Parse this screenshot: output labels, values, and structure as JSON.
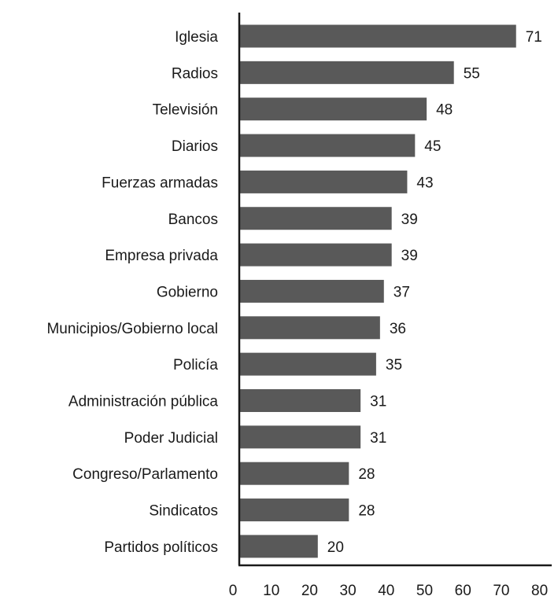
{
  "chart_data": {
    "type": "bar",
    "orientation": "horizontal",
    "categories": [
      "Iglesia",
      "Radios",
      "Televisión",
      "Diarios",
      "Fuerzas armadas",
      "Bancos",
      "Empresa privada",
      "Gobierno",
      "Municipios/Gobierno local",
      "Policía",
      "Administración pública",
      "Poder Judicial",
      "Congreso/Parlamento",
      "Sindicatos",
      "Partidos políticos"
    ],
    "values": [
      71,
      55,
      48,
      45,
      43,
      39,
      39,
      37,
      36,
      35,
      31,
      31,
      28,
      28,
      20
    ],
    "value_labels": [
      "71",
      "55",
      "48",
      "45",
      "43",
      "39",
      "39",
      "37",
      "36",
      "35",
      "31",
      "31",
      "28",
      "28",
      "20"
    ],
    "title": "",
    "xlabel": "",
    "ylabel": "",
    "xlim": [
      0,
      80
    ],
    "x_ticks": [
      0,
      10,
      20,
      30,
      40,
      50,
      60,
      70,
      80
    ],
    "x_tick_labels": [
      "0",
      "10",
      "20",
      "30",
      "40",
      "50",
      "60",
      "70",
      "80"
    ],
    "grid": false,
    "legend": "none",
    "colors": {
      "bar": "#595959",
      "axis": "#1a1a1a",
      "text": "#1a1a1a",
      "background": "#ffffff"
    }
  }
}
